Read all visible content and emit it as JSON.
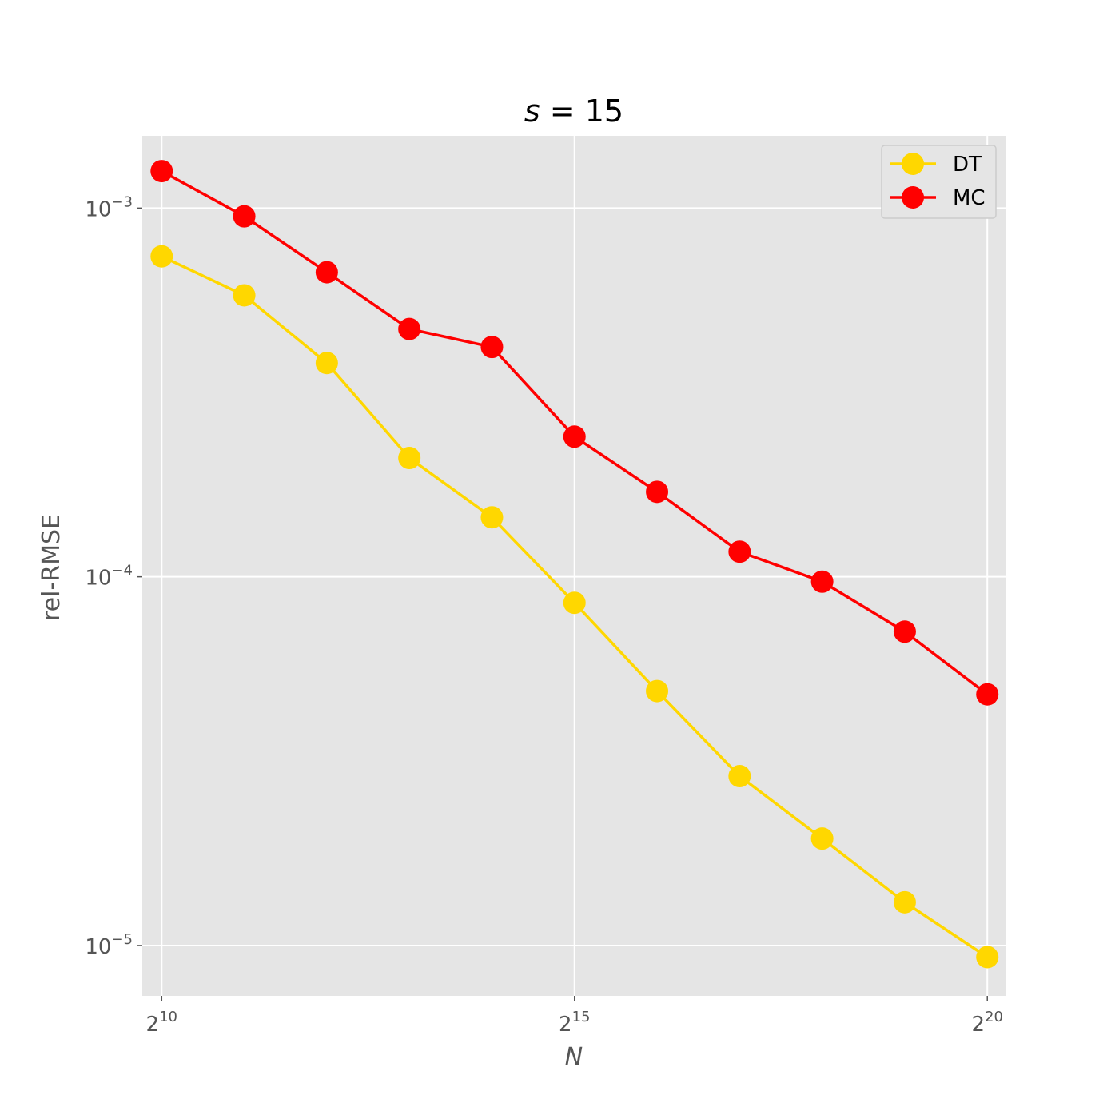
{
  "chart_data": {
    "type": "line",
    "title_var": "s",
    "title_eq": " = ",
    "title_value": "15",
    "xlabel": "N",
    "ylabel": "rel-RMSE",
    "x_scale": "log2",
    "y_scale": "log10",
    "x": [
      1024,
      2048,
      4096,
      8192,
      16384,
      32768,
      65536,
      131072,
      262144,
      524288,
      1048576
    ],
    "xlim": [
      870,
      1230000
    ],
    "ylim": [
      7.3e-06,
      0.00157
    ],
    "x_ticks": [
      {
        "value": 1024,
        "base": "2",
        "exp": "10"
      },
      {
        "value": 32768,
        "base": "2",
        "exp": "15"
      },
      {
        "value": 1048576,
        "base": "2",
        "exp": "20"
      }
    ],
    "y_ticks": [
      {
        "value": 0.001,
        "base": "10",
        "exp": "−3"
      },
      {
        "value": 0.0001,
        "base": "10",
        "exp": "−4"
      },
      {
        "value": 1e-05,
        "base": "10",
        "exp": "−5"
      }
    ],
    "grid": true,
    "legend_position": "top-right",
    "series": [
      {
        "name": "DT",
        "color": "#FFD700",
        "marker": "circle",
        "values": [
          0.00074,
          0.00058,
          0.00038,
          0.00021,
          0.000145,
          8.5e-05,
          4.9e-05,
          2.88e-05,
          1.95e-05,
          1.31e-05,
          9.3e-06
        ]
      },
      {
        "name": "MC",
        "color": "#FF0000",
        "marker": "circle",
        "values": [
          0.00126,
          0.00095,
          0.00067,
          0.00047,
          0.00042,
          0.00024,
          0.00017,
          0.000117,
          9.7e-05,
          7.1e-05,
          4.8e-05
        ]
      }
    ]
  }
}
